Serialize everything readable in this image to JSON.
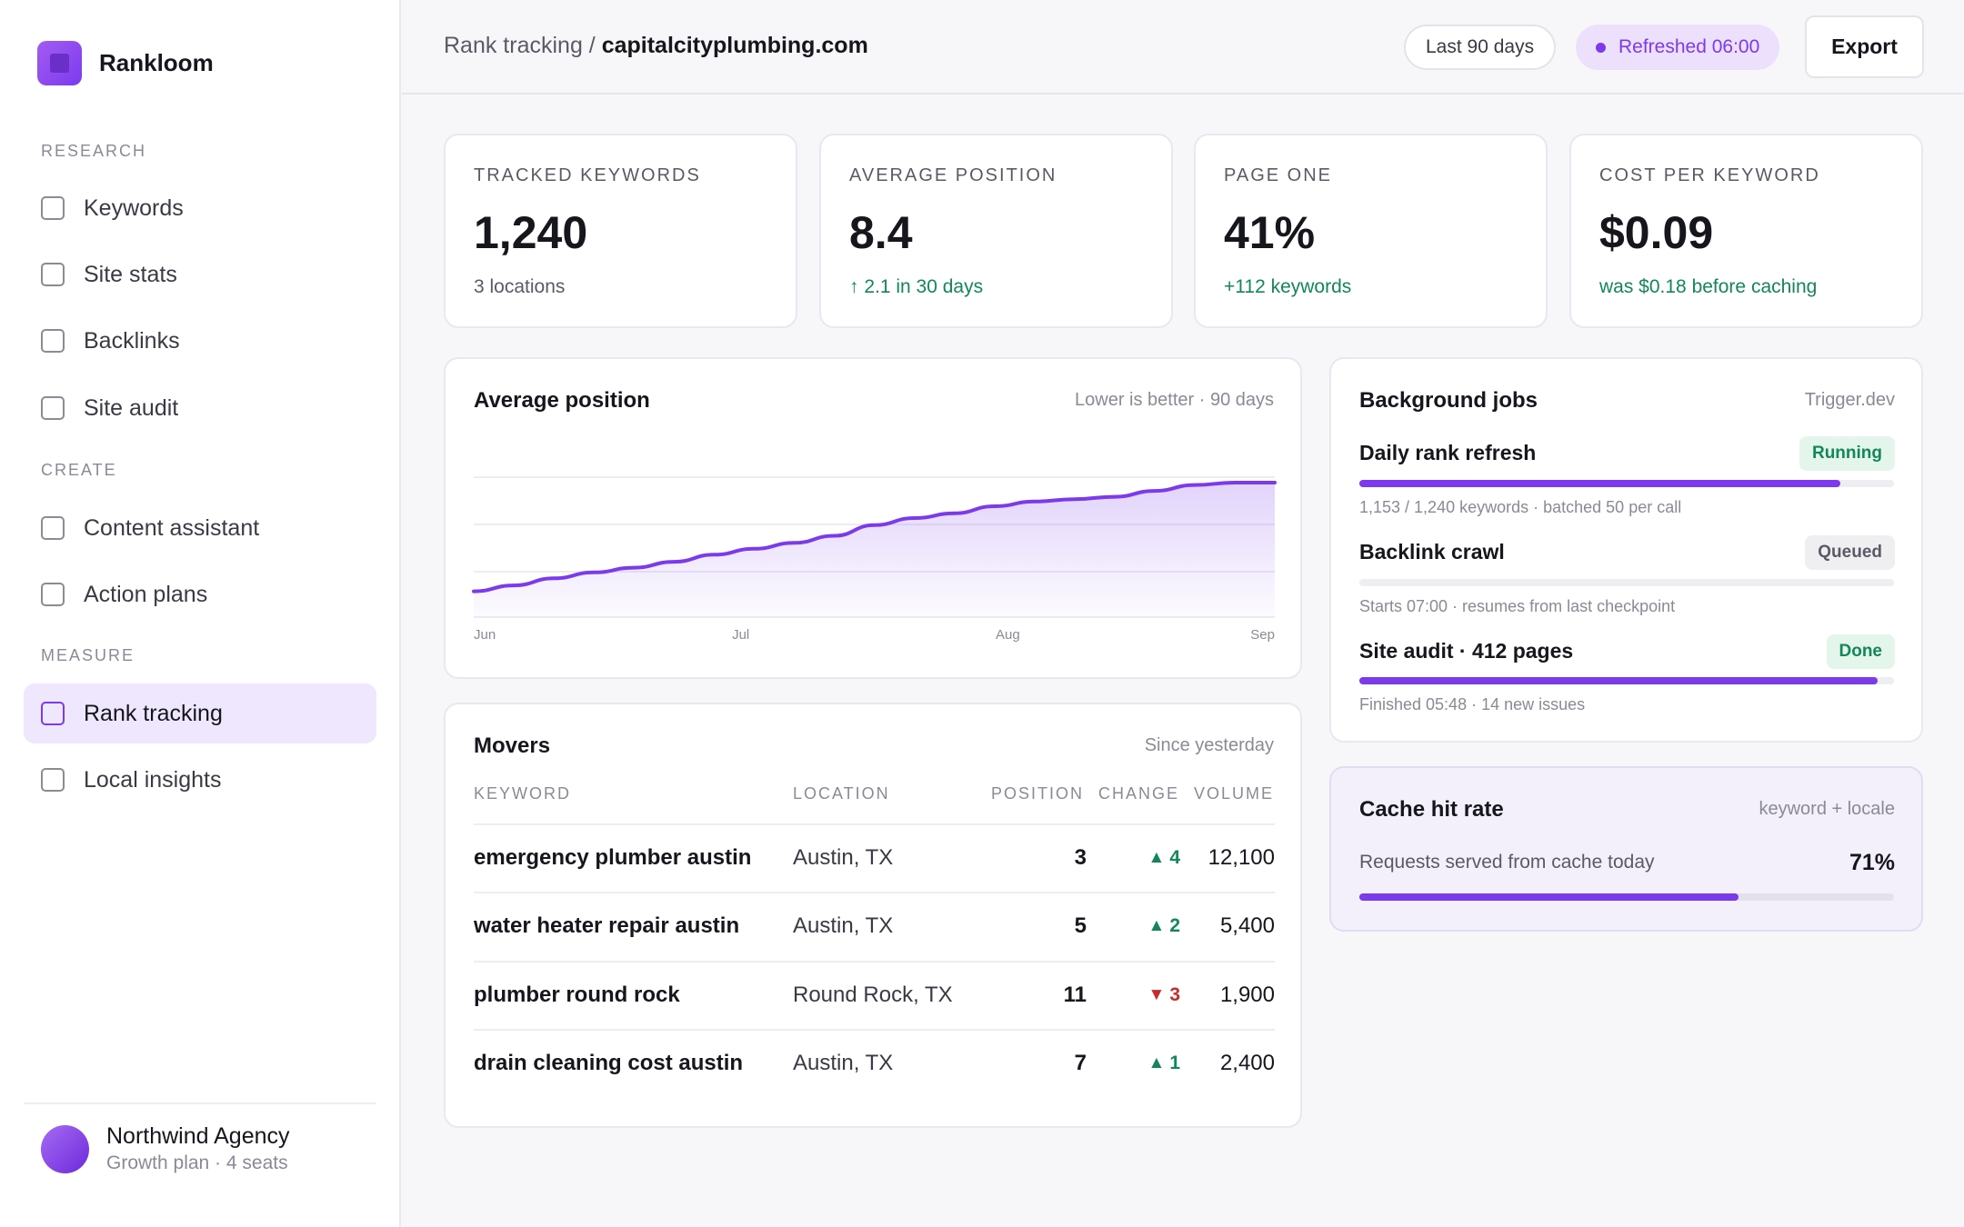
{
  "brand": {
    "name": "Rankloom"
  },
  "sidebar": {
    "sections": [
      {
        "label": "RESEARCH",
        "items": [
          {
            "label": "Keywords"
          },
          {
            "label": "Site stats"
          },
          {
            "label": "Backlinks"
          },
          {
            "label": "Site audit"
          }
        ]
      },
      {
        "label": "CREATE",
        "items": [
          {
            "label": "Content assistant"
          },
          {
            "label": "Action plans"
          }
        ]
      },
      {
        "label": "MEASURE",
        "items": [
          {
            "label": "Rank tracking",
            "active": true
          },
          {
            "label": "Local insights"
          }
        ]
      }
    ],
    "account": {
      "name": "Northwind Agency",
      "plan": "Growth plan · 4 seats"
    }
  },
  "header": {
    "breadcrumb_parent": "Rank tracking /",
    "breadcrumb_domain": "capitalcityplumbing.com",
    "range": "Last 90 days",
    "refreshed": "Refreshed 06:00",
    "export_label": "Export"
  },
  "kpis": [
    {
      "label": "TRACKED KEYWORDS",
      "value": "1,240",
      "sub": "3 locations",
      "sub_tone": "neutral"
    },
    {
      "label": "AVERAGE POSITION",
      "value": "8.4",
      "sub": "↑ 2.1 in 30 days",
      "sub_tone": "green"
    },
    {
      "label": "PAGE ONE",
      "value": "41%",
      "sub": "+112 keywords",
      "sub_tone": "green"
    },
    {
      "label": "COST PER KEYWORD",
      "value": "$0.09",
      "sub": "was $0.18 before caching",
      "sub_tone": "green"
    }
  ],
  "avg_position": {
    "title": "Average position",
    "meta": "Lower is better · 90 days"
  },
  "chart_data": {
    "type": "area",
    "title": "Average position",
    "x_ticks": [
      "Jun",
      "Jul",
      "Aug",
      "Sep"
    ],
    "x": [
      0,
      0.05,
      0.1,
      0.15,
      0.2,
      0.25,
      0.3,
      0.35,
      0.4,
      0.45,
      0.5,
      0.55,
      0.6,
      0.65,
      0.7,
      0.75,
      0.8,
      0.85,
      0.9,
      0.95,
      1.0
    ],
    "trend": [
      0.08,
      0.13,
      0.19,
      0.24,
      0.28,
      0.33,
      0.39,
      0.44,
      0.49,
      0.55,
      0.64,
      0.7,
      0.74,
      0.8,
      0.84,
      0.86,
      0.88,
      0.93,
      0.98,
      1.0,
      1.0
    ],
    "grid": true,
    "accent": "#7c3aed"
  },
  "movers": {
    "title": "Movers",
    "meta": "Since yesterday",
    "columns": {
      "keyword": "KEYWORD",
      "location": "LOCATION",
      "position": "POSITION",
      "change": "CHANGE",
      "volume": "VOLUME"
    },
    "rows": [
      {
        "keyword": "emergency plumber austin",
        "location": "Austin, TX",
        "position": "3",
        "change": "4",
        "direction": "up",
        "volume": "12,100"
      },
      {
        "keyword": "water heater repair austin",
        "location": "Austin, TX",
        "position": "5",
        "change": "2",
        "direction": "up",
        "volume": "5,400"
      },
      {
        "keyword": "plumber round rock",
        "location": "Round Rock, TX",
        "position": "11",
        "change": "3",
        "direction": "down",
        "volume": "1,900"
      },
      {
        "keyword": "drain cleaning cost austin",
        "location": "Austin, TX",
        "position": "7",
        "change": "1",
        "direction": "up",
        "volume": "2,400"
      }
    ]
  },
  "jobs": {
    "title": "Background jobs",
    "meta": "Trigger.dev",
    "items": [
      {
        "name": "Daily rank refresh",
        "status": "Running",
        "progress": 0.9,
        "detail": "1,153 / 1,240 keywords · batched 50 per call"
      },
      {
        "name": "Backlink crawl",
        "status": "Queued",
        "progress": 0,
        "detail": "Starts 07:00 · resumes from last checkpoint"
      },
      {
        "name": "Site audit · 412 pages",
        "status": "Done",
        "progress": 0.97,
        "detail": "Finished 05:48 · 14 new issues"
      }
    ]
  },
  "cache": {
    "title": "Cache hit rate",
    "meta": "keyword + locale",
    "desc": "Requests served from cache today",
    "value": "71%",
    "rate": 0.71
  }
}
